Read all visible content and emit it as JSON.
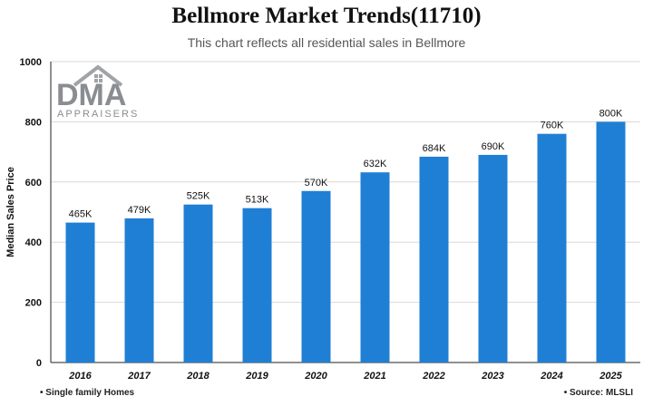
{
  "chart_data": {
    "type": "bar",
    "title": "Bellmore Market Trends(11710)",
    "subtitle": "This chart reflects all residential sales in Bellmore",
    "xlabel": "",
    "ylabel": "Median Sales Price",
    "ylim": [
      0,
      1000
    ],
    "yticks": [
      "0",
      "200",
      "400",
      "600",
      "800",
      "1000"
    ],
    "categories": [
      "2016",
      "2017",
      "2018",
      "2019",
      "2020",
      "2021",
      "2022",
      "2023",
      "2024",
      "2025"
    ],
    "values": [
      465,
      479,
      525,
      513,
      570,
      632,
      684,
      690,
      760,
      800
    ],
    "data_labels": [
      "465K",
      "479K",
      "525K",
      "513K",
      "570K",
      "632K",
      "684K",
      "690K",
      "760K",
      "800K"
    ],
    "grid": true,
    "bar_color": "#1f7fd4"
  },
  "logo": {
    "main": "DMA",
    "sub": "APPRAISERS"
  },
  "footer": {
    "left": "• Single family Homes",
    "right": "• Source: MLSLI"
  }
}
